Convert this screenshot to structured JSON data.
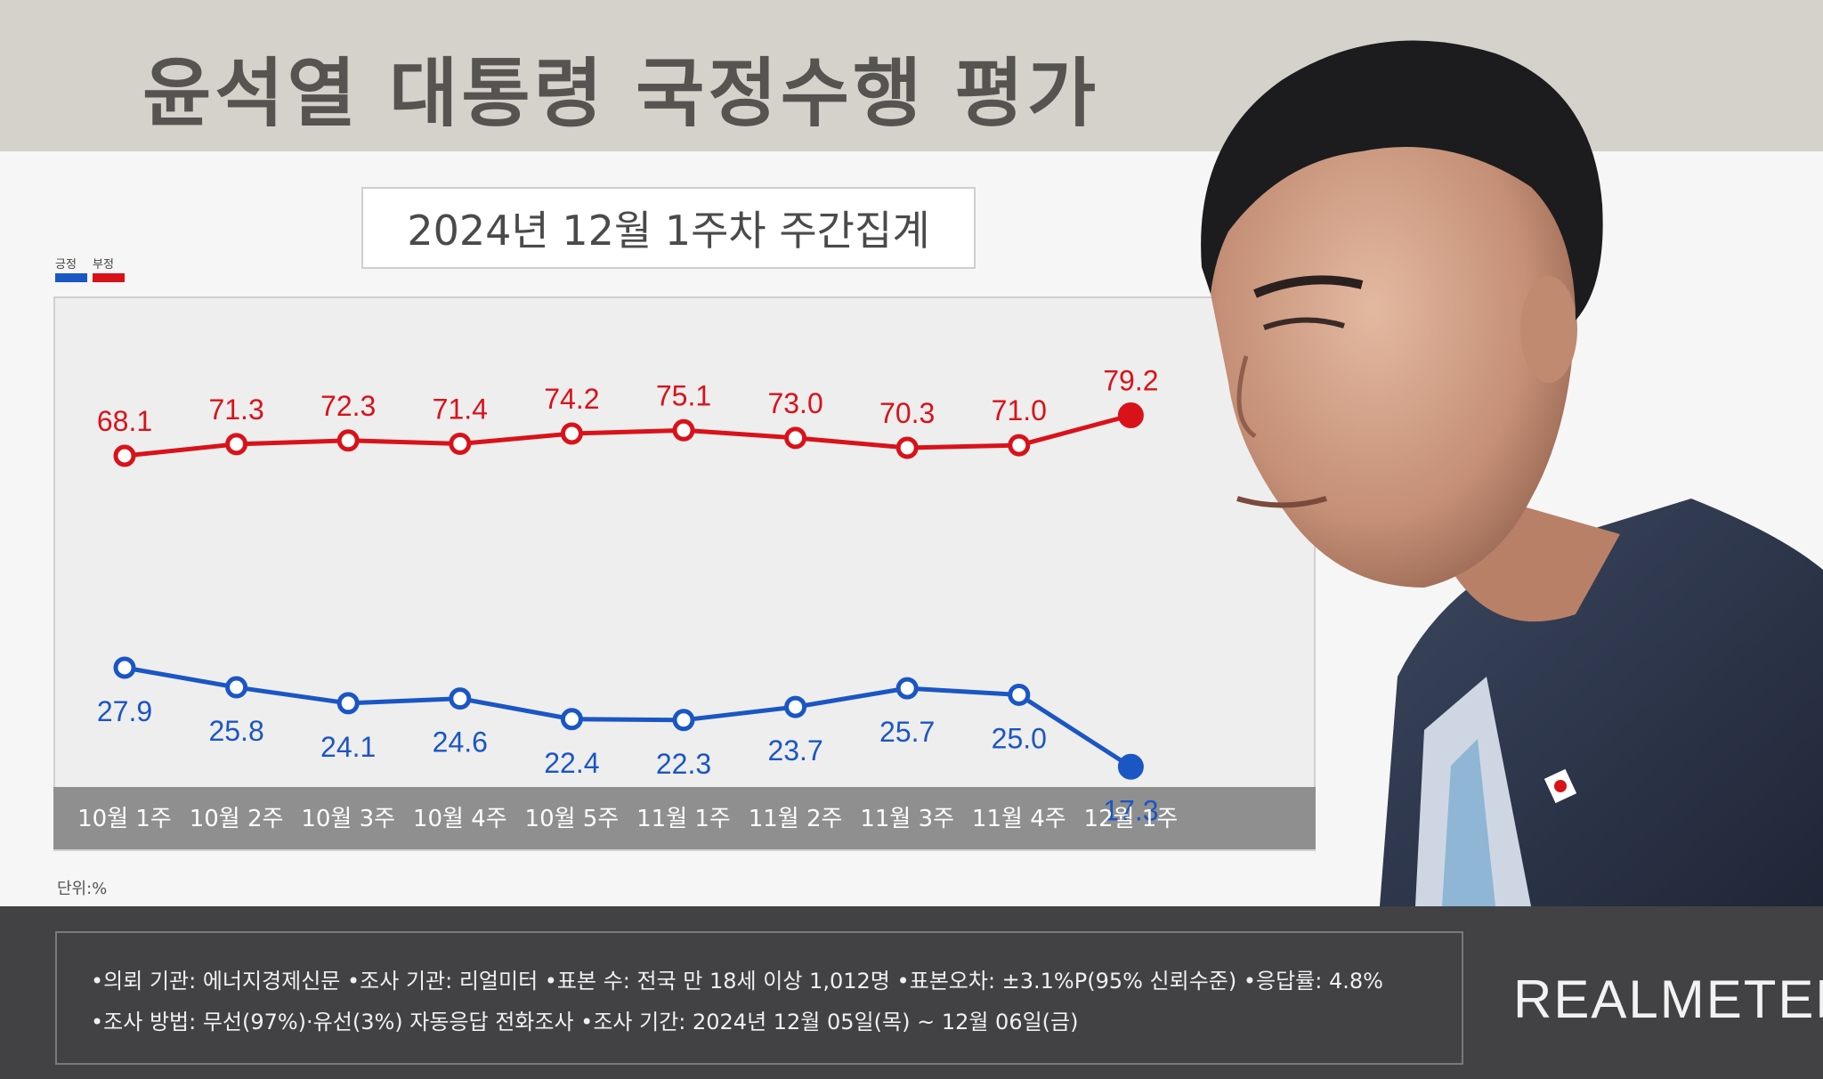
{
  "title": "윤석열 대통령 국정수행 평가",
  "subtitle": "2024년 12월 1주차 주간집계",
  "legend": {
    "positive": "긍정",
    "negative": "부정"
  },
  "unit_label": "단위:%",
  "colors": {
    "positive": "#1a56c4",
    "negative": "#d9121a"
  },
  "chart_data": {
    "type": "line",
    "categories": [
      "10월 1주",
      "10월 2주",
      "10월 3주",
      "10월 4주",
      "10월 5주",
      "11월 1주",
      "11월 2주",
      "11월 3주",
      "11월 4주",
      "12월 1주"
    ],
    "series": [
      {
        "name": "부정",
        "values": [
          68.1,
          71.3,
          72.3,
          71.4,
          74.2,
          75.1,
          73.0,
          70.3,
          71.0,
          79.2
        ]
      },
      {
        "name": "긍정",
        "values": [
          27.9,
          25.8,
          24.1,
          24.6,
          22.4,
          22.3,
          23.7,
          25.7,
          25.0,
          17.3
        ]
      }
    ],
    "value_labels": {
      "부정": [
        "68.1",
        "71.3",
        "72.3",
        "71.4",
        "74.2",
        "75.1",
        "73.0",
        "70.3",
        "71.0",
        "79.2"
      ],
      "긍정": [
        "27.9",
        "25.8",
        "24.1",
        "24.6",
        "22.4",
        "22.3",
        "23.7",
        "25.7",
        "25.0",
        "17.3"
      ]
    },
    "grid": false
  },
  "footer": {
    "line1": "•의뢰 기관: 에너지경제신문 •조사 기관: 리얼미터 •표본 수: 전국 만 18세 이상 1,012명 •표본오차: ±3.1%P(95% 신뢰수준) •응답률: 4.8%",
    "line2": "•조사 방법: 무선(97%)·유선(3%) 자동응답 전화조사 •조사 기간: 2024년 12월 05일(목) ~ 12월 06일(금)"
  },
  "logo": "REALMETER"
}
